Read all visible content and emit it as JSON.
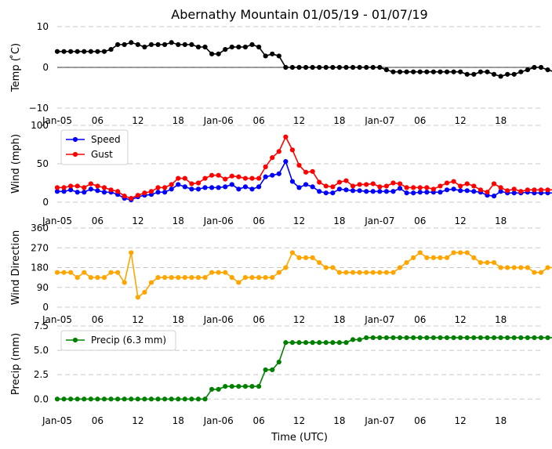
{
  "chart_data": {
    "type": "line",
    "title": "Abernathy Mountain 01/05/19 - 01/07/19",
    "xlabel": "Time (UTC)",
    "x_tick_labels": [
      "Jan-05",
      "06",
      "12",
      "18",
      "Jan-06",
      "06",
      "12",
      "18",
      "Jan-07",
      "06",
      "12",
      "18"
    ],
    "x_tick_hours": [
      0,
      6,
      12,
      18,
      24,
      30,
      36,
      42,
      48,
      54,
      60,
      66
    ],
    "x_range_hours": [
      0,
      72
    ],
    "panels": [
      {
        "ylabel": "Temp ( ̊C)",
        "ylim": [
          -10,
          10
        ],
        "yticks": [
          -10,
          0,
          10
        ],
        "ytick_labels": [
          "−10",
          "0",
          "10"
        ],
        "grid": true,
        "zero_line": true,
        "legend": null,
        "series": [
          {
            "name": "Temp",
            "color": "#000000",
            "values": [
              3.9,
              3.9,
              3.9,
              3.9,
              3.9,
              3.9,
              3.9,
              3.9,
              4.4,
              5.6,
              5.6,
              6.1,
              5.6,
              5.0,
              5.6,
              5.6,
              5.6,
              6.1,
              5.6,
              5.6,
              5.6,
              5.0,
              5.0,
              3.3,
              3.3,
              4.4,
              5.0,
              5.0,
              5.0,
              5.6,
              5.0,
              2.8,
              3.3,
              2.8,
              0,
              0,
              0,
              0,
              0,
              0,
              0,
              0,
              0,
              0,
              0,
              0,
              0,
              0,
              0,
              -0.6,
              -1.1,
              -1.1,
              -1.1,
              -1.1,
              -1.1,
              -1.1,
              -1.1,
              -1.1,
              -1.1,
              -1.1,
              -1.1,
              -1.7,
              -1.7,
              -1.1,
              -1.1,
              -1.7,
              -2.2,
              -1.7,
              -1.7,
              -1.1,
              -0.6,
              0,
              0,
              -0.6,
              -1.1
            ]
          }
        ]
      },
      {
        "ylabel": "Wind (mph)",
        "ylim": [
          0,
          100
        ],
        "yticks": [
          0,
          50,
          100
        ],
        "ytick_labels": [
          "0",
          "50",
          "100"
        ],
        "grid": true,
        "zero_line": false,
        "legend": "top-left",
        "series": [
          {
            "name": "Speed",
            "color": "#0000ff",
            "values": [
              14,
              14,
              16,
              13,
              13,
              17,
              15,
              13,
              13,
              10,
              5,
              3,
              7,
              9,
              10,
              13,
              13,
              17,
              23,
              20,
              17,
              17,
              19,
              19,
              19,
              20,
              23,
              17,
              20,
              17,
              20,
              33,
              35,
              37,
              53,
              27,
              19,
              23,
              20,
              14,
              12,
              12,
              17,
              16,
              15,
              15,
              14,
              14,
              14,
              14,
              14,
              18,
              12,
              12,
              13,
              13,
              13,
              13,
              16,
              17,
              15,
              15,
              14,
              13,
              9,
              8,
              14,
              12,
              12,
              12,
              13,
              12,
              12,
              12,
              12
            ]
          },
          {
            "name": "Gust",
            "color": "#ff0000",
            "values": [
              19,
              19,
              21,
              21,
              19,
              24,
              21,
              19,
              16,
              14,
              8,
              5,
              9,
              12,
              14,
              19,
              19,
              23,
              31,
              31,
              24,
              25,
              31,
              35,
              35,
              30,
              34,
              33,
              31,
              31,
              31,
              46,
              58,
              66,
              85,
              68,
              48,
              39,
              40,
              26,
              21,
              20,
              26,
              28,
              21,
              23,
              23,
              24,
              20,
              21,
              25,
              24,
              19,
              19,
              19,
              19,
              17,
              21,
              25,
              27,
              21,
              24,
              21,
              16,
              13,
              24,
              19,
              15,
              17,
              14,
              16,
              16,
              16,
              16,
              16
            ]
          }
        ]
      },
      {
        "ylabel": "Wind Direction",
        "ylim": [
          0,
          360
        ],
        "yticks": [
          0,
          90,
          180,
          270,
          360
        ],
        "ytick_labels": [
          "0",
          "90",
          "180",
          "270",
          "360"
        ],
        "grid": true,
        "zero_line": false,
        "legend": null,
        "series": [
          {
            "name": "Direction",
            "color": "#ffa500",
            "values": [
              158,
              158,
              158,
              135,
              158,
              135,
              135,
              135,
              158,
              158,
              112,
              248,
              45,
              68,
              112,
              135,
              135,
              135,
              135,
              135,
              135,
              135,
              135,
              158,
              158,
              158,
              135,
              112,
              135,
              135,
              135,
              135,
              135,
              158,
              180,
              248,
              225,
              225,
              225,
              203,
              180,
              180,
              158,
              158,
              158,
              158,
              158,
              158,
              158,
              158,
              158,
              180,
              203,
              225,
              248,
              225,
              225,
              225,
              225,
              248,
              248,
              248,
              225,
              203,
              203,
              203,
              180,
              180,
              180,
              180,
              180,
              158,
              158,
              180,
              180
            ]
          }
        ]
      },
      {
        "ylabel": "Precip (mm)",
        "ylim": [
          -0.3,
          7.5
        ],
        "yticks": [
          0,
          2.5,
          5.0,
          7.5
        ],
        "ytick_labels": [
          "0.0",
          "2.5",
          "5.0",
          "7.5"
        ],
        "grid": true,
        "zero_line": false,
        "legend": "top-left",
        "series": [
          {
            "name": "Precip (6.3 mm)",
            "color": "#008000",
            "values": [
              0,
              0,
              0,
              0,
              0,
              0,
              0,
              0,
              0,
              0,
              0,
              0,
              0,
              0,
              0,
              0,
              0,
              0,
              0,
              0,
              0,
              0,
              0,
              1.0,
              1.0,
              1.3,
              1.3,
              1.3,
              1.3,
              1.3,
              1.3,
              3.0,
              3.0,
              3.8,
              5.8,
              5.8,
              5.8,
              5.8,
              5.8,
              5.8,
              5.8,
              5.8,
              5.8,
              5.8,
              6.1,
              6.1,
              6.3,
              6.3,
              6.3,
              6.3,
              6.3,
              6.3,
              6.3,
              6.3,
              6.3,
              6.3,
              6.3,
              6.3,
              6.3,
              6.3,
              6.3,
              6.3,
              6.3,
              6.3,
              6.3,
              6.3,
              6.3,
              6.3,
              6.3,
              6.3,
              6.3,
              6.3,
              6.3,
              6.3,
              6.3
            ]
          }
        ]
      }
    ]
  }
}
